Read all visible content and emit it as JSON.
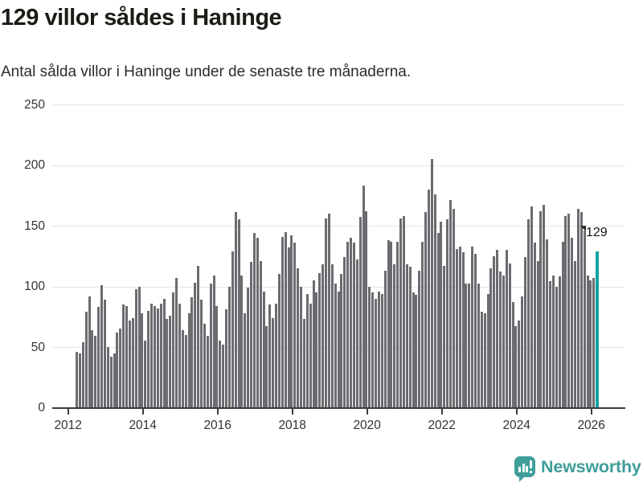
{
  "title": "129 villor såldes i Haninge",
  "subtitle": "Antal sålda villor i Haninge under de senaste tre månaderna.",
  "annotation": {
    "label": "129"
  },
  "branding": {
    "wordmark": "Newsworthy",
    "logo_icon": "bar-chart-bubble-icon"
  },
  "colors": {
    "bar": "#6b6b70",
    "highlight": "#12a2a2",
    "grid": "#e5e5e5",
    "axis": "#3c3c3c",
    "tick_text": "#333333",
    "brand_teal": "#3f9e9a"
  },
  "chart_data": {
    "type": "bar",
    "title": "129 villor såldes i Haninge",
    "subtitle": "Antal sålda villor i Haninge under de senaste tre månaderna.",
    "xlabel": "",
    "ylabel": "",
    "x_start": "2012-03",
    "x_end": "2026-02",
    "x_frequency": "monthly",
    "ylim": [
      0,
      250
    ],
    "grid": "horizontal",
    "legend": "none",
    "yticks": [
      0,
      50,
      100,
      150,
      200,
      250
    ],
    "xticks": [
      "2012",
      "2014",
      "2016",
      "2018",
      "2020",
      "2022",
      "2024",
      "2026"
    ],
    "highlight_last_value": 129,
    "values": [
      46,
      45,
      54,
      79,
      92,
      64,
      59,
      83,
      101,
      89,
      50,
      42,
      45,
      62,
      65,
      85,
      84,
      72,
      74,
      98,
      100,
      78,
      55,
      80,
      86,
      84,
      82,
      86,
      90,
      73,
      76,
      95,
      107,
      86,
      64,
      60,
      78,
      91,
      103,
      117,
      89,
      69,
      59,
      102,
      109,
      84,
      55,
      52,
      81,
      100,
      129,
      161,
      155,
      109,
      78,
      99,
      120,
      144,
      140,
      121,
      96,
      67,
      85,
      74,
      86,
      110,
      141,
      145,
      132,
      142,
      136,
      115,
      100,
      73,
      94,
      86,
      105,
      95,
      111,
      118,
      156,
      160,
      118,
      102,
      96,
      110,
      124,
      137,
      140,
      136,
      122,
      157,
      183,
      162,
      100,
      95,
      90,
      96,
      94,
      113,
      138,
      137,
      118,
      137,
      156,
      158,
      118,
      116,
      95,
      93,
      113,
      137,
      161,
      180,
      205,
      176,
      144,
      153,
      117,
      155,
      171,
      164,
      131,
      133,
      128,
      102,
      102,
      133,
      127,
      102,
      79,
      78,
      94,
      115,
      125,
      130,
      112,
      109,
      130,
      119,
      87,
      67,
      72,
      92,
      124,
      155,
      166,
      136,
      121,
      162,
      167,
      139,
      104,
      109,
      100,
      108,
      137,
      158,
      160,
      140,
      121,
      164,
      161,
      146,
      109,
      105,
      107,
      129
    ]
  }
}
